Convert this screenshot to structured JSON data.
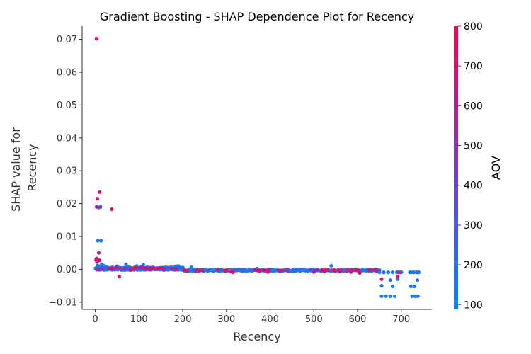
{
  "chart_data": {
    "type": "scatter",
    "title": "Gradient Boosting - SHAP Dependence Plot for Recency",
    "xlabel": "Recency",
    "ylabel_lines": [
      "SHAP value for",
      "Recency"
    ],
    "xlim": [
      -30,
      770
    ],
    "ylim": [
      -0.0122,
      0.074
    ],
    "xticks": [
      0,
      100,
      200,
      300,
      400,
      500,
      600,
      700
    ],
    "yticks": [
      -0.01,
      0.0,
      0.01,
      0.02,
      0.03,
      0.04,
      0.05,
      0.06,
      0.07
    ],
    "ytick_labels": [
      "−0.01",
      "0.00",
      "0.01",
      "0.02",
      "0.03",
      "0.04",
      "0.05",
      "0.06",
      "0.07"
    ],
    "colorbar": {
      "label": "AOV",
      "range": [
        88,
        800
      ],
      "ticks": [
        100,
        200,
        300,
        400,
        500,
        600,
        700,
        800
      ],
      "color_low": "#008afb",
      "color_mid": "#7c3bc8",
      "color_high": "#ff0051"
    },
    "points": [
      [
        3,
        0.0702,
        780
      ],
      [
        10,
        0.0235,
        740
      ],
      [
        5,
        0.0215,
        720
      ],
      [
        3,
        0.019,
        600
      ],
      [
        12,
        0.019,
        350
      ],
      [
        8,
        0.0188,
        250
      ],
      [
        38,
        0.0183,
        700
      ],
      [
        6,
        0.0087,
        160
      ],
      [
        13,
        0.0087,
        180
      ],
      [
        8,
        0.005,
        650
      ],
      [
        3,
        0.0033,
        700
      ],
      [
        6,
        0.0029,
        680
      ],
      [
        10,
        0.0027,
        650
      ],
      [
        2,
        0.003,
        700
      ],
      [
        4,
        0.0023,
        500
      ],
      [
        55,
        -0.0022,
        700
      ],
      [
        5,
        0.0012,
        150
      ],
      [
        10,
        0.0009,
        220
      ],
      [
        15,
        0.0015,
        170
      ],
      [
        20,
        0.0011,
        140
      ],
      [
        25,
        0.0007,
        200
      ],
      [
        30,
        0.0005,
        180
      ],
      [
        35,
        0.0003,
        160
      ],
      [
        40,
        0.0006,
        170
      ],
      [
        45,
        0.0002,
        300
      ],
      [
        50,
        0.0009,
        150
      ],
      [
        60,
        0.0004,
        140
      ],
      [
        65,
        0.0001,
        500
      ],
      [
        70,
        0.0015,
        150
      ],
      [
        75,
        0.0007,
        160
      ],
      [
        80,
        -0.0002,
        700
      ],
      [
        85,
        0.0003,
        650
      ],
      [
        90,
        0.0006,
        200
      ],
      [
        95,
        0.001,
        170
      ],
      [
        100,
        0.0004,
        180
      ],
      [
        105,
        0.0008,
        160
      ],
      [
        110,
        0.0014,
        150
      ],
      [
        115,
        0.0003,
        700
      ],
      [
        120,
        0.0006,
        170
      ],
      [
        130,
        0.0001,
        600
      ],
      [
        140,
        0.0002,
        180
      ],
      [
        150,
        0.0001,
        200
      ],
      [
        160,
        0.0004,
        150
      ],
      [
        170,
        0.0005,
        170
      ],
      [
        175,
        0.0001,
        650
      ],
      [
        180,
        0.0006,
        160
      ],
      [
        185,
        0.0009,
        170
      ],
      [
        190,
        0.001,
        150
      ],
      [
        195,
        0.0002,
        200
      ],
      [
        200,
        -0.0002,
        180
      ],
      [
        210,
        -0.0004,
        160
      ],
      [
        215,
        -0.0001,
        170
      ],
      [
        220,
        0.0006,
        150
      ],
      [
        230,
        -0.0005,
        600
      ],
      [
        240,
        -0.0003,
        170
      ],
      [
        250,
        -0.0003,
        180
      ],
      [
        260,
        -0.0003,
        160
      ],
      [
        270,
        -0.0004,
        150
      ],
      [
        280,
        -0.0003,
        170
      ],
      [
        290,
        -0.0004,
        180
      ],
      [
        300,
        -0.0003,
        650
      ],
      [
        310,
        -0.0006,
        700
      ],
      [
        315,
        -0.0009,
        750
      ],
      [
        320,
        -0.0004,
        160
      ],
      [
        330,
        -0.0003,
        170
      ],
      [
        340,
        -0.0004,
        180
      ],
      [
        350,
        -0.0003,
        160
      ],
      [
        360,
        -0.0004,
        150
      ],
      [
        370,
        0.0002,
        170
      ],
      [
        375,
        -0.0003,
        180
      ],
      [
        380,
        -0.0001,
        150
      ],
      [
        390,
        -0.0004,
        160
      ],
      [
        395,
        -0.0008,
        650
      ],
      [
        400,
        -0.0003,
        170
      ],
      [
        410,
        -0.0004,
        180
      ],
      [
        420,
        -0.0003,
        160
      ],
      [
        430,
        -0.0004,
        150
      ],
      [
        440,
        -0.0003,
        170
      ],
      [
        450,
        -0.0004,
        180
      ],
      [
        455,
        -0.0003,
        160
      ],
      [
        460,
        -0.0001,
        150
      ],
      [
        470,
        -0.0003,
        170
      ],
      [
        480,
        -0.0004,
        180
      ],
      [
        490,
        -0.0003,
        160
      ],
      [
        500,
        -0.0008,
        700
      ],
      [
        510,
        -0.0003,
        170
      ],
      [
        520,
        -0.0004,
        180
      ],
      [
        530,
        -0.0003,
        160
      ],
      [
        540,
        0.0011,
        150
      ],
      [
        545,
        -0.0003,
        170
      ],
      [
        550,
        -0.0004,
        180
      ],
      [
        560,
        -0.0006,
        700
      ],
      [
        570,
        -0.0003,
        170
      ],
      [
        580,
        -0.0004,
        180
      ],
      [
        585,
        -0.0008,
        650
      ],
      [
        590,
        -0.0003,
        160
      ],
      [
        595,
        -0.0001,
        150
      ],
      [
        600,
        -0.0004,
        170
      ],
      [
        605,
        -0.0011,
        700
      ],
      [
        610,
        -0.0003,
        180
      ],
      [
        620,
        -0.0004,
        160
      ],
      [
        630,
        -0.0003,
        150
      ],
      [
        640,
        -0.0004,
        170
      ],
      [
        645,
        -0.0003,
        180
      ],
      [
        650,
        -0.0009,
        160
      ],
      [
        655,
        -0.003,
        700
      ],
      [
        655,
        -0.005,
        160
      ],
      [
        655,
        -0.0082,
        170
      ],
      [
        665,
        -0.0082,
        150
      ],
      [
        670,
        -0.0009,
        180
      ],
      [
        675,
        -0.0033,
        160
      ],
      [
        675,
        -0.0082,
        170
      ],
      [
        680,
        -0.0052,
        150
      ],
      [
        685,
        -0.0082,
        160
      ],
      [
        690,
        -0.0009,
        170
      ],
      [
        692,
        -0.0022,
        650
      ],
      [
        692,
        -0.003,
        180
      ],
      [
        695,
        -0.0009,
        700
      ],
      [
        720,
        -0.0009,
        160
      ],
      [
        722,
        -0.0052,
        170
      ],
      [
        725,
        -0.0082,
        150
      ],
      [
        728,
        -0.0009,
        180
      ],
      [
        730,
        -0.0052,
        160
      ],
      [
        732,
        -0.0082,
        170
      ],
      [
        735,
        -0.0009,
        150
      ],
      [
        737,
        -0.0033,
        160
      ],
      [
        738,
        -0.0082,
        170
      ],
      [
        740,
        -0.0009,
        180
      ]
    ]
  }
}
